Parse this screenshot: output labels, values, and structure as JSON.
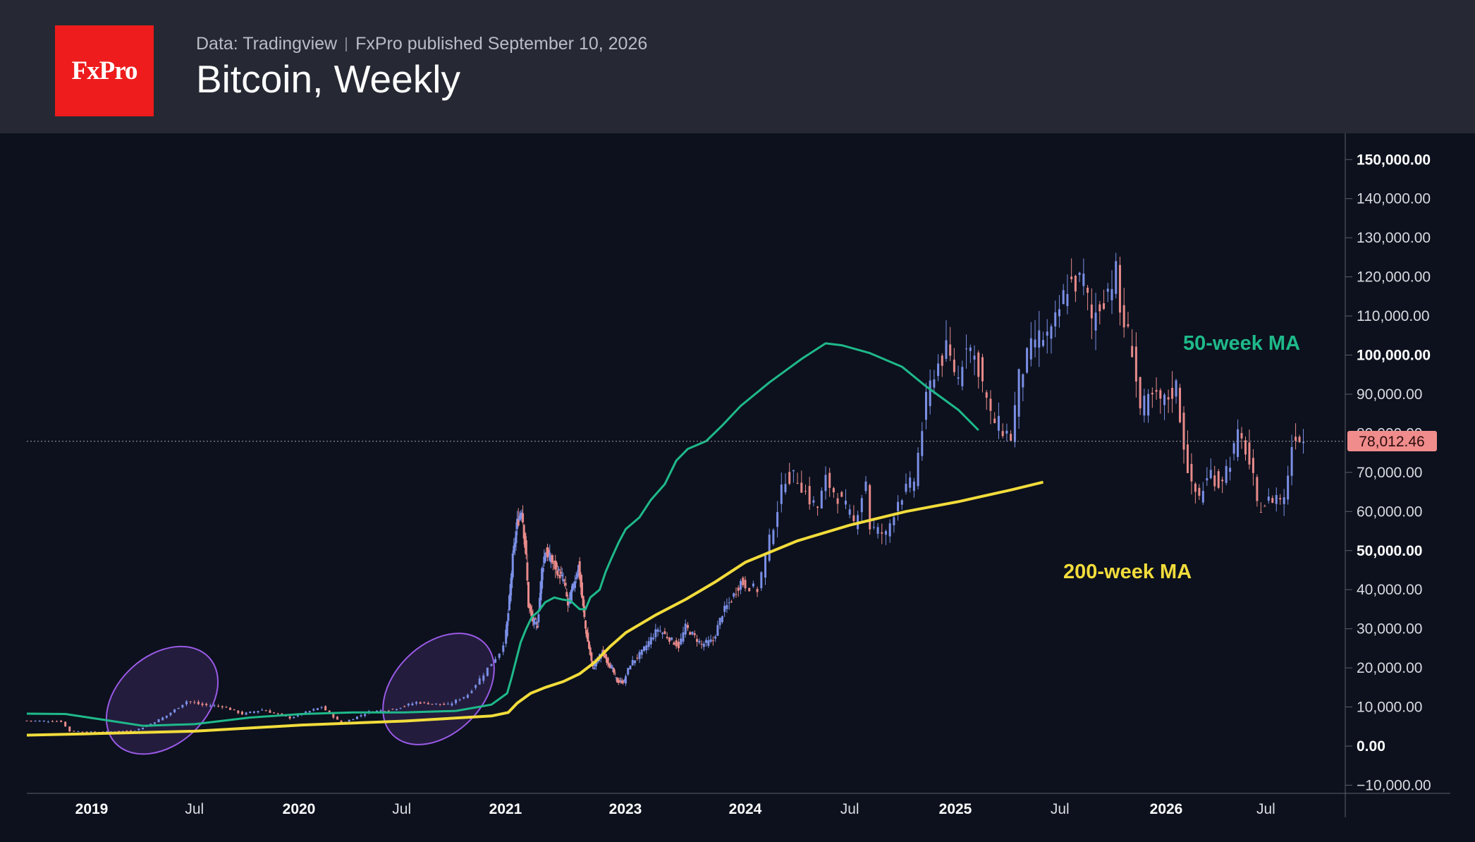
{
  "header": {
    "logo_text": "FxPro",
    "source": "Data: Tradingview",
    "published": "FxPro published September 10, 2026",
    "title": "Bitcoin, Weekly"
  },
  "colors": {
    "header_bg": "#262933",
    "chart_bg": "#0c111d",
    "logo_red": "#ee1c1c",
    "candle_up": "#7b8fe6",
    "candle_down": "#e88a8a",
    "ma50": "#1fb98a",
    "ma200": "#f2dc3b",
    "ellipse": "#9a5ae6",
    "price_tag": "#f08c8c"
  },
  "chart_data": {
    "type": "candlestick",
    "title": "Bitcoin, Weekly",
    "ylim": [
      -10000,
      155000
    ],
    "y_ticks": [
      {
        "value": 150000,
        "label": "150,000.00",
        "bold": true
      },
      {
        "value": 140000,
        "label": "140,000.00",
        "bold": false
      },
      {
        "value": 130000,
        "label": "130,000.00",
        "bold": false
      },
      {
        "value": 120000,
        "label": "120,000.00",
        "bold": false
      },
      {
        "value": 110000,
        "label": "110,000.00",
        "bold": false
      },
      {
        "value": 100000,
        "label": "100,000.00",
        "bold": true
      },
      {
        "value": 90000,
        "label": "90,000.00",
        "bold": false
      },
      {
        "value": 70000,
        "label": "70,000.00",
        "bold": false
      },
      {
        "value": 60000,
        "label": "60,000.00",
        "bold": false
      },
      {
        "value": 50000,
        "label": "50,000.00",
        "bold": true
      },
      {
        "value": 40000,
        "label": "40,000.00",
        "bold": false
      },
      {
        "value": 30000,
        "label": "30,000.00",
        "bold": false
      },
      {
        "value": 20000,
        "label": "20,000.00",
        "bold": false
      },
      {
        "value": 10000,
        "label": "10,000.00",
        "bold": false
      },
      {
        "value": 0,
        "label": "0.00",
        "bold": true
      },
      {
        "value": -10000,
        "label": "−10,000.00",
        "bold": false
      }
    ],
    "partial_tick": {
      "value": 80000,
      "label": "80,000.00"
    },
    "x_ticks": [
      {
        "date": "2019-01-01",
        "label": "2019",
        "bold": true
      },
      {
        "date": "2019-07-01",
        "label": "Jul",
        "bold": false
      },
      {
        "date": "2020-01-01",
        "label": "2020",
        "bold": true
      },
      {
        "date": "2020-07-01",
        "label": "Jul",
        "bold": false
      },
      {
        "date": "2021-01-01",
        "label": "2021",
        "bold": true
      },
      {
        "date": "2023-01-01",
        "label": "2023",
        "bold": true
      },
      {
        "date": "2024-01-01",
        "label": "2024",
        "bold": true
      },
      {
        "date": "2024-07-01",
        "label": "Jul",
        "bold": false
      },
      {
        "date": "2025-01-01",
        "label": "2025",
        "bold": true
      },
      {
        "date": "2025-07-01",
        "label": "Jul",
        "bold": false
      },
      {
        "date": "2026-01-01",
        "label": "2026",
        "bold": true
      },
      {
        "date": "2026-07-01",
        "label": "Jul",
        "bold": false
      }
    ],
    "last_price": 78012.46,
    "last_price_label": "78,012.46",
    "price_anchors": [
      [
        "2018-09-17",
        6500
      ],
      [
        "2018-11-12",
        6300
      ],
      [
        "2018-11-26",
        3800
      ],
      [
        "2019-01-14",
        3600
      ],
      [
        "2019-03-18",
        4000
      ],
      [
        "2019-04-08",
        5200
      ],
      [
        "2019-05-13",
        7800
      ],
      [
        "2019-06-17",
        11500
      ],
      [
        "2019-07-15",
        10500
      ],
      [
        "2019-08-19",
        10200
      ],
      [
        "2019-09-23",
        8200
      ],
      [
        "2019-10-28",
        9300
      ],
      [
        "2019-12-16",
        7200
      ],
      [
        "2020-02-10",
        10000
      ],
      [
        "2020-03-16",
        5800
      ],
      [
        "2020-05-04",
        8800
      ],
      [
        "2020-06-15",
        9400
      ],
      [
        "2020-07-27",
        11200
      ],
      [
        "2020-09-21",
        10500
      ],
      [
        "2020-10-26",
        13200
      ],
      [
        "2020-11-23",
        18500
      ],
      [
        "2020-12-21",
        24000
      ],
      [
        "2021-01-18",
        34000
      ],
      [
        "2021-02-15",
        48000
      ],
      [
        "2021-03-15",
        57000
      ],
      [
        "2021-04-12",
        61000
      ],
      [
        "2021-05-10",
        48000
      ],
      [
        "2021-05-24",
        36000
      ],
      [
        "2021-06-21",
        32000
      ],
      [
        "2021-07-19",
        31000
      ],
      [
        "2021-08-16",
        45000
      ],
      [
        "2021-09-06",
        50000
      ],
      [
        "2022-01-03",
        42000
      ],
      [
        "2022-01-24",
        36000
      ],
      [
        "2022-03-28",
        46000
      ],
      [
        "2022-05-09",
        30000
      ],
      [
        "2022-06-20",
        20000
      ],
      [
        "2022-08-15",
        24000
      ],
      [
        "2022-10-17",
        19500
      ],
      [
        "2022-11-14",
        16500
      ],
      [
        "2022-12-26",
        16500
      ],
      [
        "2023-01-16",
        21000
      ],
      [
        "2023-02-20",
        24000
      ],
      [
        "2023-03-20",
        27500
      ],
      [
        "2023-04-10",
        30000
      ],
      [
        "2023-06-12",
        25500
      ],
      [
        "2023-07-03",
        30500
      ],
      [
        "2023-08-21",
        26000
      ],
      [
        "2023-09-25",
        27000
      ],
      [
        "2023-10-23",
        34000
      ],
      [
        "2023-11-20",
        37500
      ],
      [
        "2023-12-18",
        42000
      ],
      [
        "2024-01-22",
        40000
      ],
      [
        "2024-02-26",
        61000
      ],
      [
        "2024-03-11",
        69000
      ],
      [
        "2024-04-01",
        68500
      ],
      [
        "2024-04-22",
        63000
      ],
      [
        "2024-05-06",
        61000
      ],
      [
        "2024-05-20",
        68000
      ],
      [
        "2024-06-24",
        61000
      ],
      [
        "2024-07-08",
        57000
      ],
      [
        "2024-07-29",
        68000
      ],
      [
        "2024-08-05",
        56000
      ],
      [
        "2024-09-02",
        54000
      ],
      [
        "2024-09-23",
        63000
      ],
      [
        "2024-10-21",
        68000
      ],
      [
        "2024-11-11",
        88000
      ],
      [
        "2024-11-25",
        96000
      ],
      [
        "2024-12-16",
        101000
      ],
      [
        "2025-01-06",
        94000
      ],
      [
        "2025-01-20",
        104000
      ],
      [
        "2025-02-10",
        97000
      ],
      [
        "2025-03-03",
        84000
      ],
      [
        "2025-04-07",
        79000
      ],
      [
        "2025-04-21",
        94000
      ],
      [
        "2025-05-19",
        104000
      ],
      [
        "2025-06-16",
        105000
      ],
      [
        "2025-07-14",
        118000
      ],
      [
        "2025-08-11",
        119000
      ],
      [
        "2025-08-25",
        109000
      ],
      [
        "2025-09-15",
        115000
      ],
      [
        "2025-10-06",
        121000
      ],
      [
        "2025-10-13",
        111000
      ],
      [
        "2025-11-03",
        102000
      ],
      [
        "2025-11-17",
        86000
      ],
      [
        "2025-12-08",
        89000
      ],
      [
        "2025-12-29",
        88000
      ],
      [
        "2026-01-19",
        92000
      ],
      [
        "2026-02-02",
        77000
      ],
      [
        "2026-02-16",
        66000
      ],
      [
        "2026-03-02",
        64000
      ],
      [
        "2026-03-23",
        70000
      ],
      [
        "2026-04-06",
        67000
      ],
      [
        "2026-04-27",
        73000
      ],
      [
        "2026-05-11",
        79000
      ],
      [
        "2026-05-25",
        76000
      ],
      [
        "2026-06-08",
        68000
      ],
      [
        "2026-06-15",
        61000
      ],
      [
        "2026-06-29",
        62000
      ],
      [
        "2026-07-20",
        64000
      ],
      [
        "2026-08-03",
        63000
      ],
      [
        "2026-08-17",
        77000
      ],
      [
        "2026-08-24",
        80000
      ],
      [
        "2026-08-31",
        79000
      ],
      [
        "2026-09-07",
        78012
      ]
    ],
    "series": [
      {
        "name": "50-week MA",
        "color": "#1fb98a",
        "points": [
          [
            "2018-09-17",
            8300
          ],
          [
            "2018-11-19",
            8200
          ],
          [
            "2019-01-28",
            6600
          ],
          [
            "2019-04-01",
            5200
          ],
          [
            "2019-07-01",
            5600
          ],
          [
            "2019-10-07",
            7300
          ],
          [
            "2020-01-06",
            8200
          ],
          [
            "2020-04-06",
            8600
          ],
          [
            "2020-07-06",
            8600
          ],
          [
            "2020-10-05",
            9000
          ],
          [
            "2020-12-07",
            10600
          ],
          [
            "2021-01-11",
            13500
          ],
          [
            "2021-02-08",
            17500
          ],
          [
            "2021-03-08",
            22000
          ],
          [
            "2021-04-05",
            26500
          ],
          [
            "2021-05-10",
            30000
          ],
          [
            "2021-06-14",
            33000
          ],
          [
            "2021-07-26",
            34500
          ],
          [
            "2021-09-06",
            36800
          ],
          [
            "2021-11-01",
            38000
          ],
          [
            "2021-12-20",
            37500
          ],
          [
            "2022-02-07",
            37200
          ],
          [
            "2022-04-04",
            35000
          ],
          [
            "2022-05-09",
            35000
          ],
          [
            "2022-06-06",
            38000
          ],
          [
            "2022-08-01",
            40000
          ],
          [
            "2022-09-05",
            44500
          ],
          [
            "2022-10-10",
            48000
          ],
          [
            "2022-11-21",
            52000
          ],
          [
            "2023-01-02",
            55500
          ],
          [
            "2023-02-13",
            58500
          ],
          [
            "2023-03-20",
            63000
          ],
          [
            "2023-05-01",
            67000
          ],
          [
            "2023-06-05",
            73000
          ],
          [
            "2023-07-10",
            76000
          ],
          [
            "2023-09-04",
            78000
          ],
          [
            "2023-10-23",
            82000
          ],
          [
            "2023-12-18",
            87000
          ],
          [
            "2024-02-12",
            93000
          ],
          [
            "2024-04-08",
            99000
          ],
          [
            "2024-05-20",
            103000
          ],
          [
            "2024-06-17",
            102500
          ],
          [
            "2024-08-05",
            100500
          ],
          [
            "2024-09-30",
            97000
          ],
          [
            "2024-11-11",
            92000
          ],
          [
            "2025-01-06",
            86000
          ],
          [
            "2025-02-10",
            80800
          ]
        ]
      },
      {
        "name": "200-week MA",
        "color": "#f2dc3b",
        "points": [
          [
            "2018-09-17",
            2800
          ],
          [
            "2019-01-07",
            3200
          ],
          [
            "2019-07-01",
            3800
          ],
          [
            "2020-01-06",
            5400
          ],
          [
            "2020-07-06",
            6400
          ],
          [
            "2020-12-07",
            7700
          ],
          [
            "2021-01-18",
            8600
          ],
          [
            "2021-03-15",
            11000
          ],
          [
            "2021-06-07",
            13500
          ],
          [
            "2021-09-06",
            15000
          ],
          [
            "2021-12-27",
            16500
          ],
          [
            "2022-04-04",
            18500
          ],
          [
            "2022-07-04",
            21500
          ],
          [
            "2022-10-03",
            25500
          ],
          [
            "2023-01-02",
            29000
          ],
          [
            "2023-04-03",
            33500
          ],
          [
            "2023-07-03",
            37500
          ],
          [
            "2023-10-02",
            42000
          ],
          [
            "2024-01-01",
            47000
          ],
          [
            "2024-04-01",
            52500
          ],
          [
            "2024-07-01",
            56500
          ],
          [
            "2024-10-07",
            60000
          ],
          [
            "2025-01-06",
            62500
          ],
          [
            "2025-04-07",
            65500
          ],
          [
            "2025-06-02",
            67500
          ]
        ]
      }
    ],
    "annotations": [
      "50-week MA",
      "200-week MA"
    ]
  }
}
